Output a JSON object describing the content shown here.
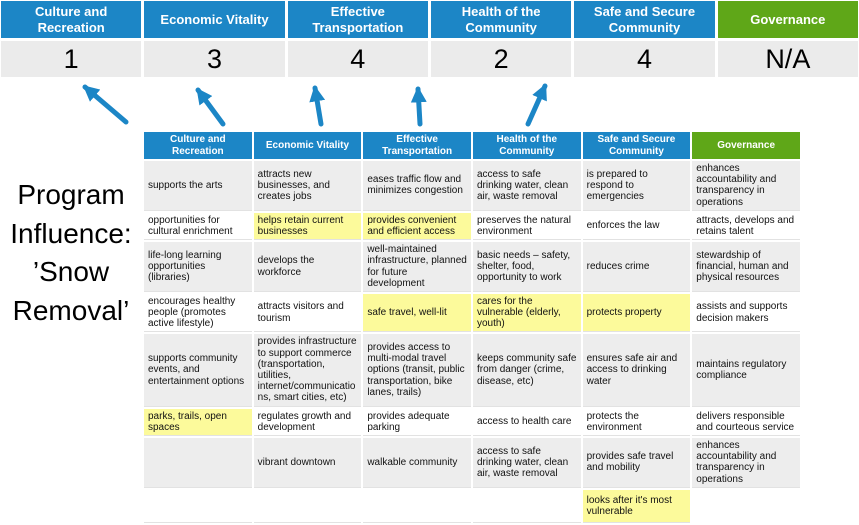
{
  "program_title": {
    "full": "Program Influence: ’Snow Removal’",
    "lines": [
      "Program",
      "Influence:",
      "’Snow",
      "Removal’"
    ]
  },
  "colors": {
    "blue": "#1C86C6",
    "green": "#5FA718",
    "score_bg": "#EBEBEB",
    "row_band": "#EDEDED",
    "highlight": "#FCFA9B",
    "arrow": "#1C86C6"
  },
  "scoreboard": [
    {
      "category": "Culture and Recreation",
      "score": "1",
      "theme": "blue"
    },
    {
      "category": "Economic Vitality",
      "score": "3",
      "theme": "blue"
    },
    {
      "category": "Effective Transportation",
      "score": "4",
      "theme": "blue"
    },
    {
      "category": "Health of the Community",
      "score": "2",
      "theme": "blue"
    },
    {
      "category": "Safe and Secure Community",
      "score": "4",
      "theme": "blue"
    },
    {
      "category": "Governance",
      "score": "N/A",
      "theme": "green"
    }
  ],
  "matrix": {
    "headers": [
      {
        "label": "Culture and Recreation",
        "theme": "blue"
      },
      {
        "label": "Economic Vitality",
        "theme": "blue"
      },
      {
        "label": "Effective Transportation",
        "theme": "blue"
      },
      {
        "label": "Health of the Community",
        "theme": "blue"
      },
      {
        "label": "Safe and Secure Community",
        "theme": "blue"
      },
      {
        "label": "Governance",
        "theme": "green"
      }
    ],
    "rows": [
      [
        {
          "text": "supports the arts",
          "highlight": false
        },
        {
          "text": "attracts new businesses, and creates jobs",
          "highlight": false
        },
        {
          "text": "eases traffic flow and minimizes congestion",
          "highlight": true
        },
        {
          "text": "access to safe drinking water, clean air, waste removal",
          "highlight": false
        },
        {
          "text": "is prepared to respond to emergencies",
          "highlight": true
        },
        {
          "text": "enhances accountability and transparency in operations",
          "highlight": false
        }
      ],
      [
        {
          "text": "opportunities for cultural enrichment",
          "highlight": false
        },
        {
          "text": "helps retain current businesses",
          "highlight": true
        },
        {
          "text": "provides convenient and efficient access",
          "highlight": true
        },
        {
          "text": "preserves the natural environment",
          "highlight": false
        },
        {
          "text": "enforces the law",
          "highlight": false
        },
        {
          "text": "attracts, develops and retains talent",
          "highlight": false
        }
      ],
      [
        {
          "text": "life-long learning opportunities (libraries)",
          "highlight": false
        },
        {
          "text": "develops the workforce",
          "highlight": false
        },
        {
          "text": "well-maintained infrastructure, planned for future development",
          "highlight": false
        },
        {
          "text": "basic needs – safety, shelter, food, opportunity to work",
          "highlight": true
        },
        {
          "text": "reduces crime",
          "highlight": false
        },
        {
          "text": "stewardship of financial, human and physical resources",
          "highlight": false
        }
      ],
      [
        {
          "text": "encourages healthy people (promotes active lifestyle)",
          "highlight": false
        },
        {
          "text": "attracts visitors and tourism",
          "highlight": false
        },
        {
          "text": "safe travel, well-lit",
          "highlight": true
        },
        {
          "text": "cares for the vulnerable (elderly, youth)",
          "highlight": true
        },
        {
          "text": "protects property",
          "highlight": true
        },
        {
          "text": "assists and supports decision makers",
          "highlight": false
        }
      ],
      [
        {
          "text": "supports community events, and entertainment options",
          "highlight": false
        },
        {
          "text": "provides infrastructure to support commerce (transportation, utilities, internet/communications, smart cities, etc)",
          "highlight": true
        },
        {
          "text": "provides access to multi-modal travel options (transit, public transportation, bike lanes, trails)",
          "highlight": true
        },
        {
          "text": "keeps community safe from danger (crime, disease, etc)",
          "highlight": true
        },
        {
          "text": "ensures safe air and access to drinking water",
          "highlight": false
        },
        {
          "text": "maintains regulatory compliance",
          "highlight": false
        }
      ],
      [
        {
          "text": "parks, trails, open spaces",
          "highlight": true
        },
        {
          "text": "regulates growth and development",
          "highlight": false
        },
        {
          "text": "provides adequate parking",
          "highlight": false
        },
        {
          "text": "access to health care",
          "highlight": false
        },
        {
          "text": "protects the environment",
          "highlight": false
        },
        {
          "text": "delivers responsible and courteous service",
          "highlight": false
        }
      ],
      [
        {
          "text": "",
          "highlight": false
        },
        {
          "text": "vibrant downtown",
          "highlight": false
        },
        {
          "text": "walkable community",
          "highlight": false
        },
        {
          "text": "access to safe drinking water, clean air, waste removal",
          "highlight": false
        },
        {
          "text": "provides safe travel and mobility",
          "highlight": true
        },
        {
          "text": "enhances accountability and transparency in operations",
          "highlight": false
        }
      ],
      [
        {
          "text": "",
          "highlight": false
        },
        {
          "text": "",
          "highlight": false
        },
        {
          "text": "",
          "highlight": false
        },
        {
          "text": "",
          "highlight": false
        },
        {
          "text": "looks after it's most vulnerable",
          "highlight": true
        },
        {
          "text": "",
          "highlight": false,
          "blank": true
        }
      ]
    ]
  }
}
